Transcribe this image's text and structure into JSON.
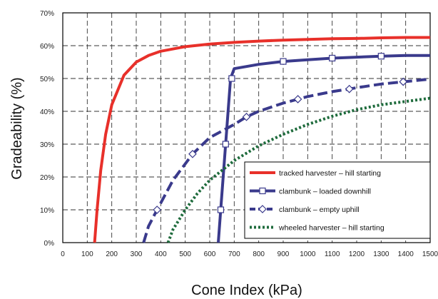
{
  "chart_data": {
    "type": "line",
    "title": "",
    "xlabel": "Cone Index (kPa)",
    "ylabel": "Gradeability (%)",
    "xlim": [
      0,
      1500
    ],
    "ylim": [
      0,
      70
    ],
    "x_ticks": [
      "0",
      "100",
      "200",
      "300",
      "400",
      "500",
      "600",
      "700",
      "800",
      "900",
      "1000",
      "1100",
      "1200",
      "1300",
      "1400",
      "1500"
    ],
    "y_ticks": [
      "0%",
      "10%",
      "20%",
      "30%",
      "40%",
      "50%",
      "60%",
      "70%"
    ],
    "grid": true,
    "legend_position": "bottom-right",
    "series": [
      {
        "name": "tracked harvester – hill starting",
        "color": "#e8302a",
        "style": "solid",
        "marker": "none",
        "points": [
          [
            130,
            0
          ],
          [
            140,
            10
          ],
          [
            155,
            22
          ],
          [
            175,
            33
          ],
          [
            200,
            42
          ],
          [
            250,
            51
          ],
          [
            300,
            55
          ],
          [
            350,
            57
          ],
          [
            400,
            58.3
          ],
          [
            500,
            59.7
          ],
          [
            600,
            60.5
          ],
          [
            700,
            61
          ],
          [
            800,
            61.4
          ],
          [
            900,
            61.7
          ],
          [
            1000,
            61.9
          ],
          [
            1100,
            62.1
          ],
          [
            1200,
            62.2
          ],
          [
            1300,
            62.4
          ],
          [
            1400,
            62.5
          ],
          [
            1500,
            62.5
          ]
        ]
      },
      {
        "name": "clambunk – loaded downhill",
        "color": "#3a3a8c",
        "style": "solid",
        "marker": "square",
        "points": [
          [
            635,
            0
          ],
          [
            645,
            10
          ],
          [
            665,
            30
          ],
          [
            685,
            50
          ],
          [
            700,
            53
          ],
          [
            800,
            54.3
          ],
          [
            900,
            55.2
          ],
          [
            1000,
            55.7
          ],
          [
            1100,
            56.2
          ],
          [
            1200,
            56.5
          ],
          [
            1300,
            56.8
          ],
          [
            1400,
            57
          ],
          [
            1500,
            57
          ]
        ],
        "markers": [
          [
            645,
            10
          ],
          [
            665,
            30
          ],
          [
            690,
            50
          ],
          [
            900,
            55.2
          ],
          [
            1100,
            56.2
          ],
          [
            1300,
            56.8
          ]
        ]
      },
      {
        "name": "clambunk – empty uphill",
        "color": "#3a3a8c",
        "style": "dashed",
        "marker": "diamond",
        "points": [
          [
            330,
            0
          ],
          [
            350,
            5
          ],
          [
            385,
            10
          ],
          [
            450,
            19
          ],
          [
            530,
            27
          ],
          [
            600,
            32
          ],
          [
            700,
            36
          ],
          [
            750,
            38.3
          ],
          [
            800,
            40
          ],
          [
            900,
            42.5
          ],
          [
            960,
            43.7
          ],
          [
            1000,
            44.5
          ],
          [
            1100,
            46
          ],
          [
            1170,
            46.8
          ],
          [
            1200,
            47.2
          ],
          [
            1300,
            48.3
          ],
          [
            1390,
            49
          ],
          [
            1500,
            49.8
          ]
        ],
        "markers": [
          [
            385,
            10
          ],
          [
            530,
            27
          ],
          [
            750,
            38.3
          ],
          [
            960,
            43.7
          ],
          [
            1170,
            46.8
          ],
          [
            1390,
            49
          ]
        ]
      },
      {
        "name": "wheeled harvester – hill starting",
        "color": "#1e6b3c",
        "style": "dotted",
        "marker": "none",
        "points": [
          [
            430,
            0
          ],
          [
            450,
            4
          ],
          [
            500,
            10
          ],
          [
            550,
            15
          ],
          [
            600,
            19
          ],
          [
            700,
            25
          ],
          [
            800,
            29.5
          ],
          [
            900,
            33
          ],
          [
            1000,
            36
          ],
          [
            1100,
            38.5
          ],
          [
            1200,
            40.5
          ],
          [
            1300,
            42
          ],
          [
            1400,
            43
          ],
          [
            1500,
            44
          ]
        ]
      }
    ]
  }
}
